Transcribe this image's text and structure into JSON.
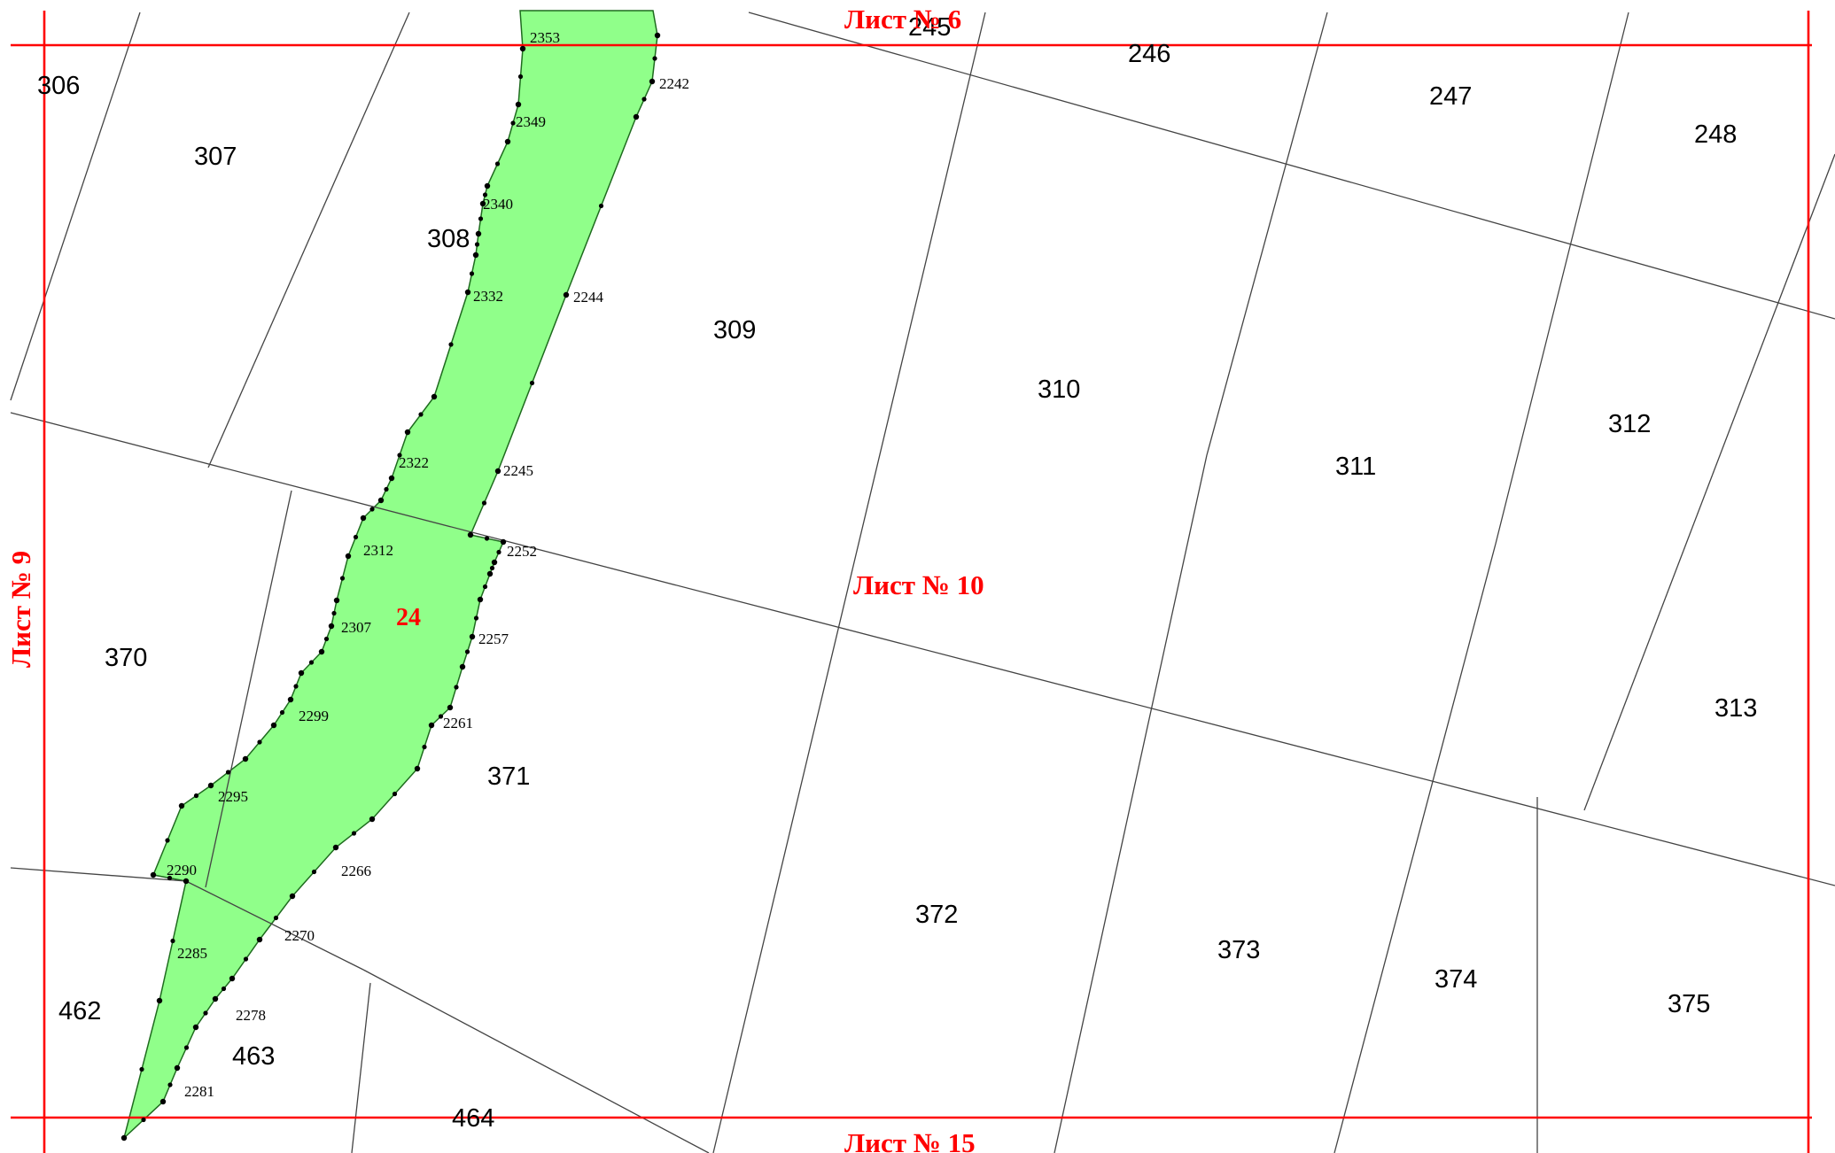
{
  "colors": {
    "zone_fill": "#90ff8a",
    "zone_stroke": "#1e6b1e",
    "sheet_lines": "#ff0000",
    "parcel_lines": "#444444",
    "vertex": "#000000"
  },
  "sheets": {
    "top": "Лист № 6",
    "center": "Лист № 10",
    "left": "Лист № 9",
    "bottom": "Лист № 15"
  },
  "zone": {
    "label": "24"
  },
  "parcels": {
    "p245": "245",
    "p246": "246",
    "p247": "247",
    "p248": "248",
    "p306": "306",
    "p307": "307",
    "p308": "308",
    "p309": "309",
    "p310": "310",
    "p311": "311",
    "p312": "312",
    "p313": "313",
    "p370": "370",
    "p371": "371",
    "p372": "372",
    "p373": "373",
    "p374": "374",
    "p375": "375",
    "p462": "462",
    "p463": "463",
    "p464": "464"
  },
  "points": {
    "pt2353": "2353",
    "pt2242": "2242",
    "pt2349": "2349",
    "pt2340": "2340",
    "pt2332": "2332",
    "pt2244": "2244",
    "pt2322": "2322",
    "pt2245": "2245",
    "pt2312": "2312",
    "pt2252": "2252",
    "pt2307": "2307",
    "pt2257": "2257",
    "pt2299": "2299",
    "pt2261": "2261",
    "pt2295": "2295",
    "pt2290": "2290",
    "pt2266": "2266",
    "pt2270": "2270",
    "pt2285": "2285",
    "pt2278": "2278",
    "pt2281": "2281"
  }
}
